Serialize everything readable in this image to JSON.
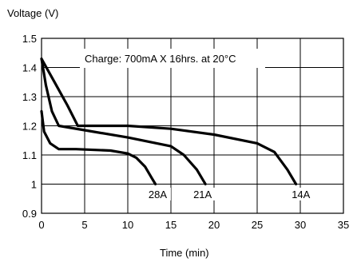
{
  "chart_data": {
    "type": "line",
    "title": "",
    "ylabel": "Voltage (V)",
    "xlabel": "Time (min)",
    "xlim": [
      0,
      35
    ],
    "ylim": [
      0.9,
      1.5
    ],
    "xticks": [
      0,
      5,
      10,
      15,
      20,
      25,
      30,
      35
    ],
    "yticks": [
      0.9,
      1,
      1.1,
      1.2,
      1.3,
      1.4,
      1.5
    ],
    "ytick_labels": [
      "0.9",
      "1",
      "1.1",
      "1.2",
      "1.3",
      "1.4",
      "1.5"
    ],
    "grid": true,
    "annotation": "Charge: 700mA X 16hrs. at 20°C",
    "series": [
      {
        "name": "28A",
        "points": [
          [
            0,
            1.25
          ],
          [
            0.3,
            1.18
          ],
          [
            1,
            1.14
          ],
          [
            2,
            1.12
          ],
          [
            4,
            1.12
          ],
          [
            8,
            1.115
          ],
          [
            10,
            1.105
          ],
          [
            11,
            1.09
          ],
          [
            12,
            1.06
          ],
          [
            12.8,
            1.02
          ],
          [
            13.2,
            1.0
          ]
        ]
      },
      {
        "name": "21A",
        "points": [
          [
            0,
            1.43
          ],
          [
            0.5,
            1.34
          ],
          [
            1.2,
            1.25
          ],
          [
            2,
            1.2
          ],
          [
            5,
            1.185
          ],
          [
            10,
            1.16
          ],
          [
            15,
            1.13
          ],
          [
            16.5,
            1.1
          ],
          [
            18,
            1.05
          ],
          [
            19,
            1.0
          ]
        ]
      },
      {
        "name": "14A",
        "points": [
          [
            0,
            1.43
          ],
          [
            1.5,
            1.35
          ],
          [
            3,
            1.27
          ],
          [
            4.2,
            1.2
          ],
          [
            10,
            1.2
          ],
          [
            15,
            1.19
          ],
          [
            20,
            1.17
          ],
          [
            25,
            1.14
          ],
          [
            27,
            1.11
          ],
          [
            28.5,
            1.05
          ],
          [
            29.5,
            1.0
          ]
        ]
      }
    ],
    "series_label_positions": [
      {
        "name": "28A",
        "x": 12.4,
        "y": 0.955
      },
      {
        "name": "21A",
        "x": 17.6,
        "y": 0.955
      },
      {
        "name": "14A",
        "x": 29.0,
        "y": 0.955
      }
    ]
  }
}
